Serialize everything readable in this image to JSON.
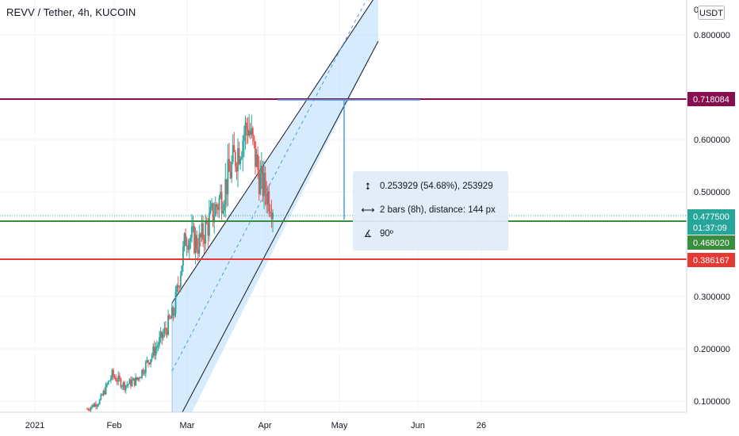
{
  "header": {
    "symbol_title": "REVV / Tether, 4h, KUCOIN",
    "currency_button": "USDT"
  },
  "chart_data": {
    "type": "candlestick",
    "title": "REVV / Tether, 4h, KUCOIN",
    "y_axis": {
      "ticks": [
        "0.100000",
        "0.200000",
        "0.300000",
        "0.500000",
        "0.600000",
        "0.800000"
      ],
      "tick_values": [
        0.1,
        0.2,
        0.3,
        0.5,
        0.6,
        0.8
      ],
      "range": [
        0.08,
        0.88
      ],
      "top_clipped_label": "0"
    },
    "x_axis": {
      "labels": [
        "2021",
        "Feb",
        "Mar",
        "Apr",
        "May",
        "Jun",
        "26"
      ]
    },
    "price_series_approx": {
      "x": [
        "2021-02-10",
        "2021-02-20",
        "2021-02-23",
        "2021-02-26",
        "2021-03-03",
        "2021-03-08",
        "2021-03-12",
        "2021-03-15",
        "2021-03-18",
        "2021-03-22",
        "2021-03-24",
        "2021-03-26",
        "2021-03-28",
        "2021-03-31",
        "2021-04-01",
        "2021-04-03"
      ],
      "close": [
        0.085,
        0.1,
        0.15,
        0.13,
        0.14,
        0.18,
        0.22,
        0.27,
        0.42,
        0.4,
        0.45,
        0.5,
        0.57,
        0.63,
        0.52,
        0.4775
      ]
    },
    "horizontal_levels": [
      {
        "value": 0.718084,
        "label": "0.718084",
        "color": "#880e4f"
      },
      {
        "value": 0.4775,
        "label": "0.477500",
        "countdown": "01:37:09",
        "color": "#26a69a"
      },
      {
        "value": 0.46802,
        "label": "0.468020",
        "color": "#388e3c"
      },
      {
        "value": 0.386167,
        "label": "0.386167",
        "color": "#e53935"
      }
    ],
    "measure_tool": {
      "price_change": "0.253929 (54.68%), 253929",
      "bars": "2 bars (8h), distance: 144 px",
      "angle": "90º"
    },
    "annotations": [
      "parallel channel (rising)"
    ]
  },
  "colors": {
    "up": "#26a69a",
    "down": "#ef5350",
    "channel_fill": "#bbdefb",
    "grid": "#f0f3fa"
  },
  "icons": {
    "measure_price": "vertical-arrows-icon",
    "measure_bars": "horizontal-arrows-icon",
    "measure_angle": "angle-icon"
  }
}
